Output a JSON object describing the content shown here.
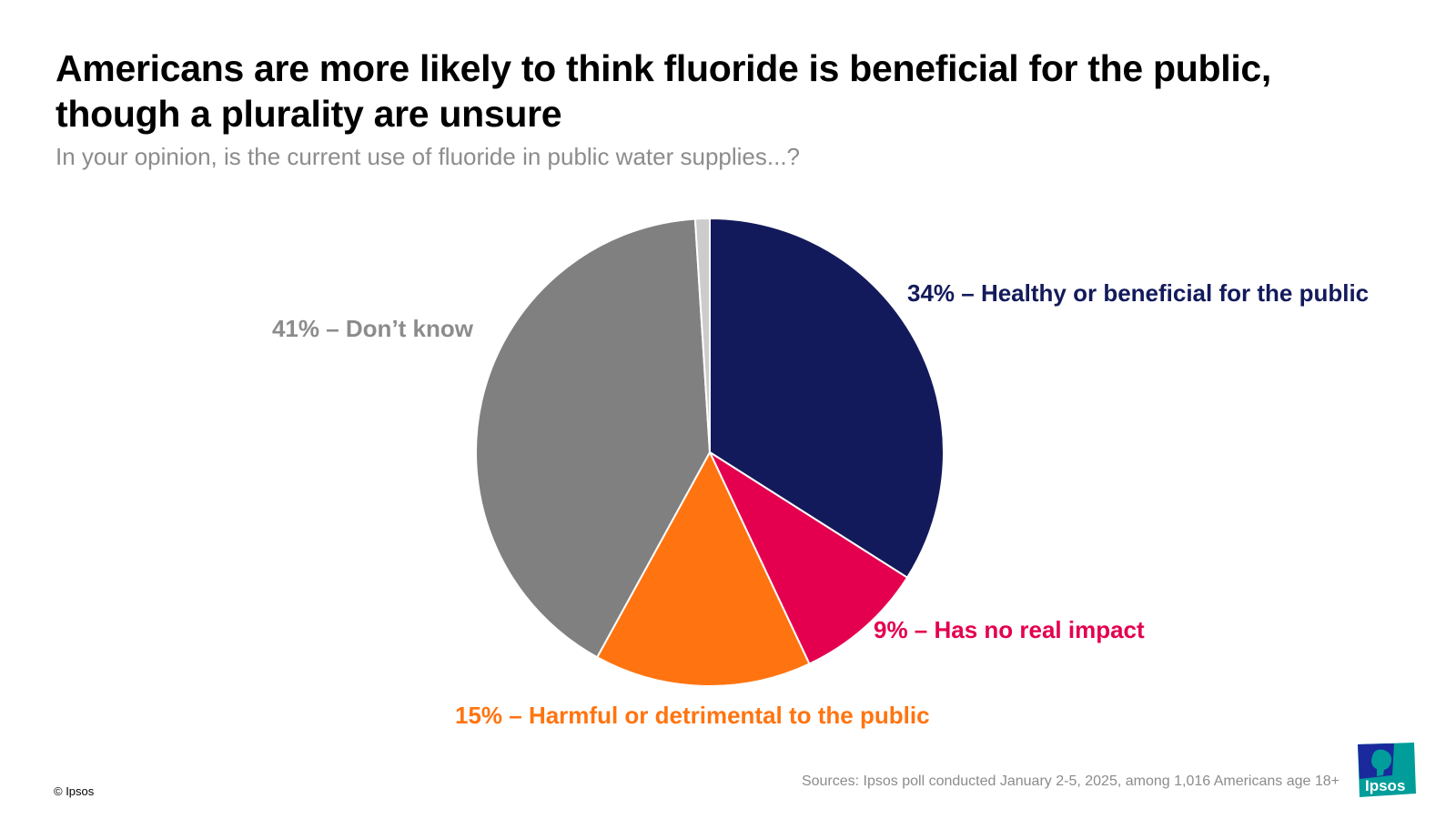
{
  "header": {
    "title": "Americans are more likely to think fluoride is beneficial for the public, though a plurality are unsure",
    "subtitle": "In your opinion, is the current use of fluoride in public water supplies...?"
  },
  "chart_data": {
    "type": "pie",
    "title": "Americans are more likely to think fluoride is beneficial for the public, though a plurality are unsure",
    "subtitle": "In your opinion, is the current use of fluoride in public water supplies...?",
    "slices": [
      {
        "name": "Healthy or beneficial for the public",
        "value": 34,
        "label": "34% – Healthy or beneficial for the public",
        "color": "#131a5b",
        "label_color": "#131a5b"
      },
      {
        "name": "Has no real impact",
        "value": 9,
        "label": "9% – Has no real impact",
        "color": "#e4004f",
        "label_color": "#e4004f"
      },
      {
        "name": "Harmful or detrimental to the public",
        "value": 15,
        "label": "15% – Harmful or detrimental to the public",
        "color": "#ff7410",
        "label_color": "#ff7410"
      },
      {
        "name": "Don’t know",
        "value": 41,
        "label": "41% – Don’t know",
        "color": "#808080",
        "label_color": "#8c8c8c"
      },
      {
        "name": "",
        "value": 1,
        "label": "",
        "color": "#cccccc",
        "label_color": "#cccccc"
      }
    ]
  },
  "footer": {
    "copyright": "© Ipsos",
    "source": "Sources:  Ipsos poll conducted January 2-5, 2025, among 1,016 Americans age 18+",
    "logo_text": "Ipsos"
  },
  "colors": {
    "logo_blue": "#1a2a9c",
    "logo_teal": "#009d9a"
  }
}
